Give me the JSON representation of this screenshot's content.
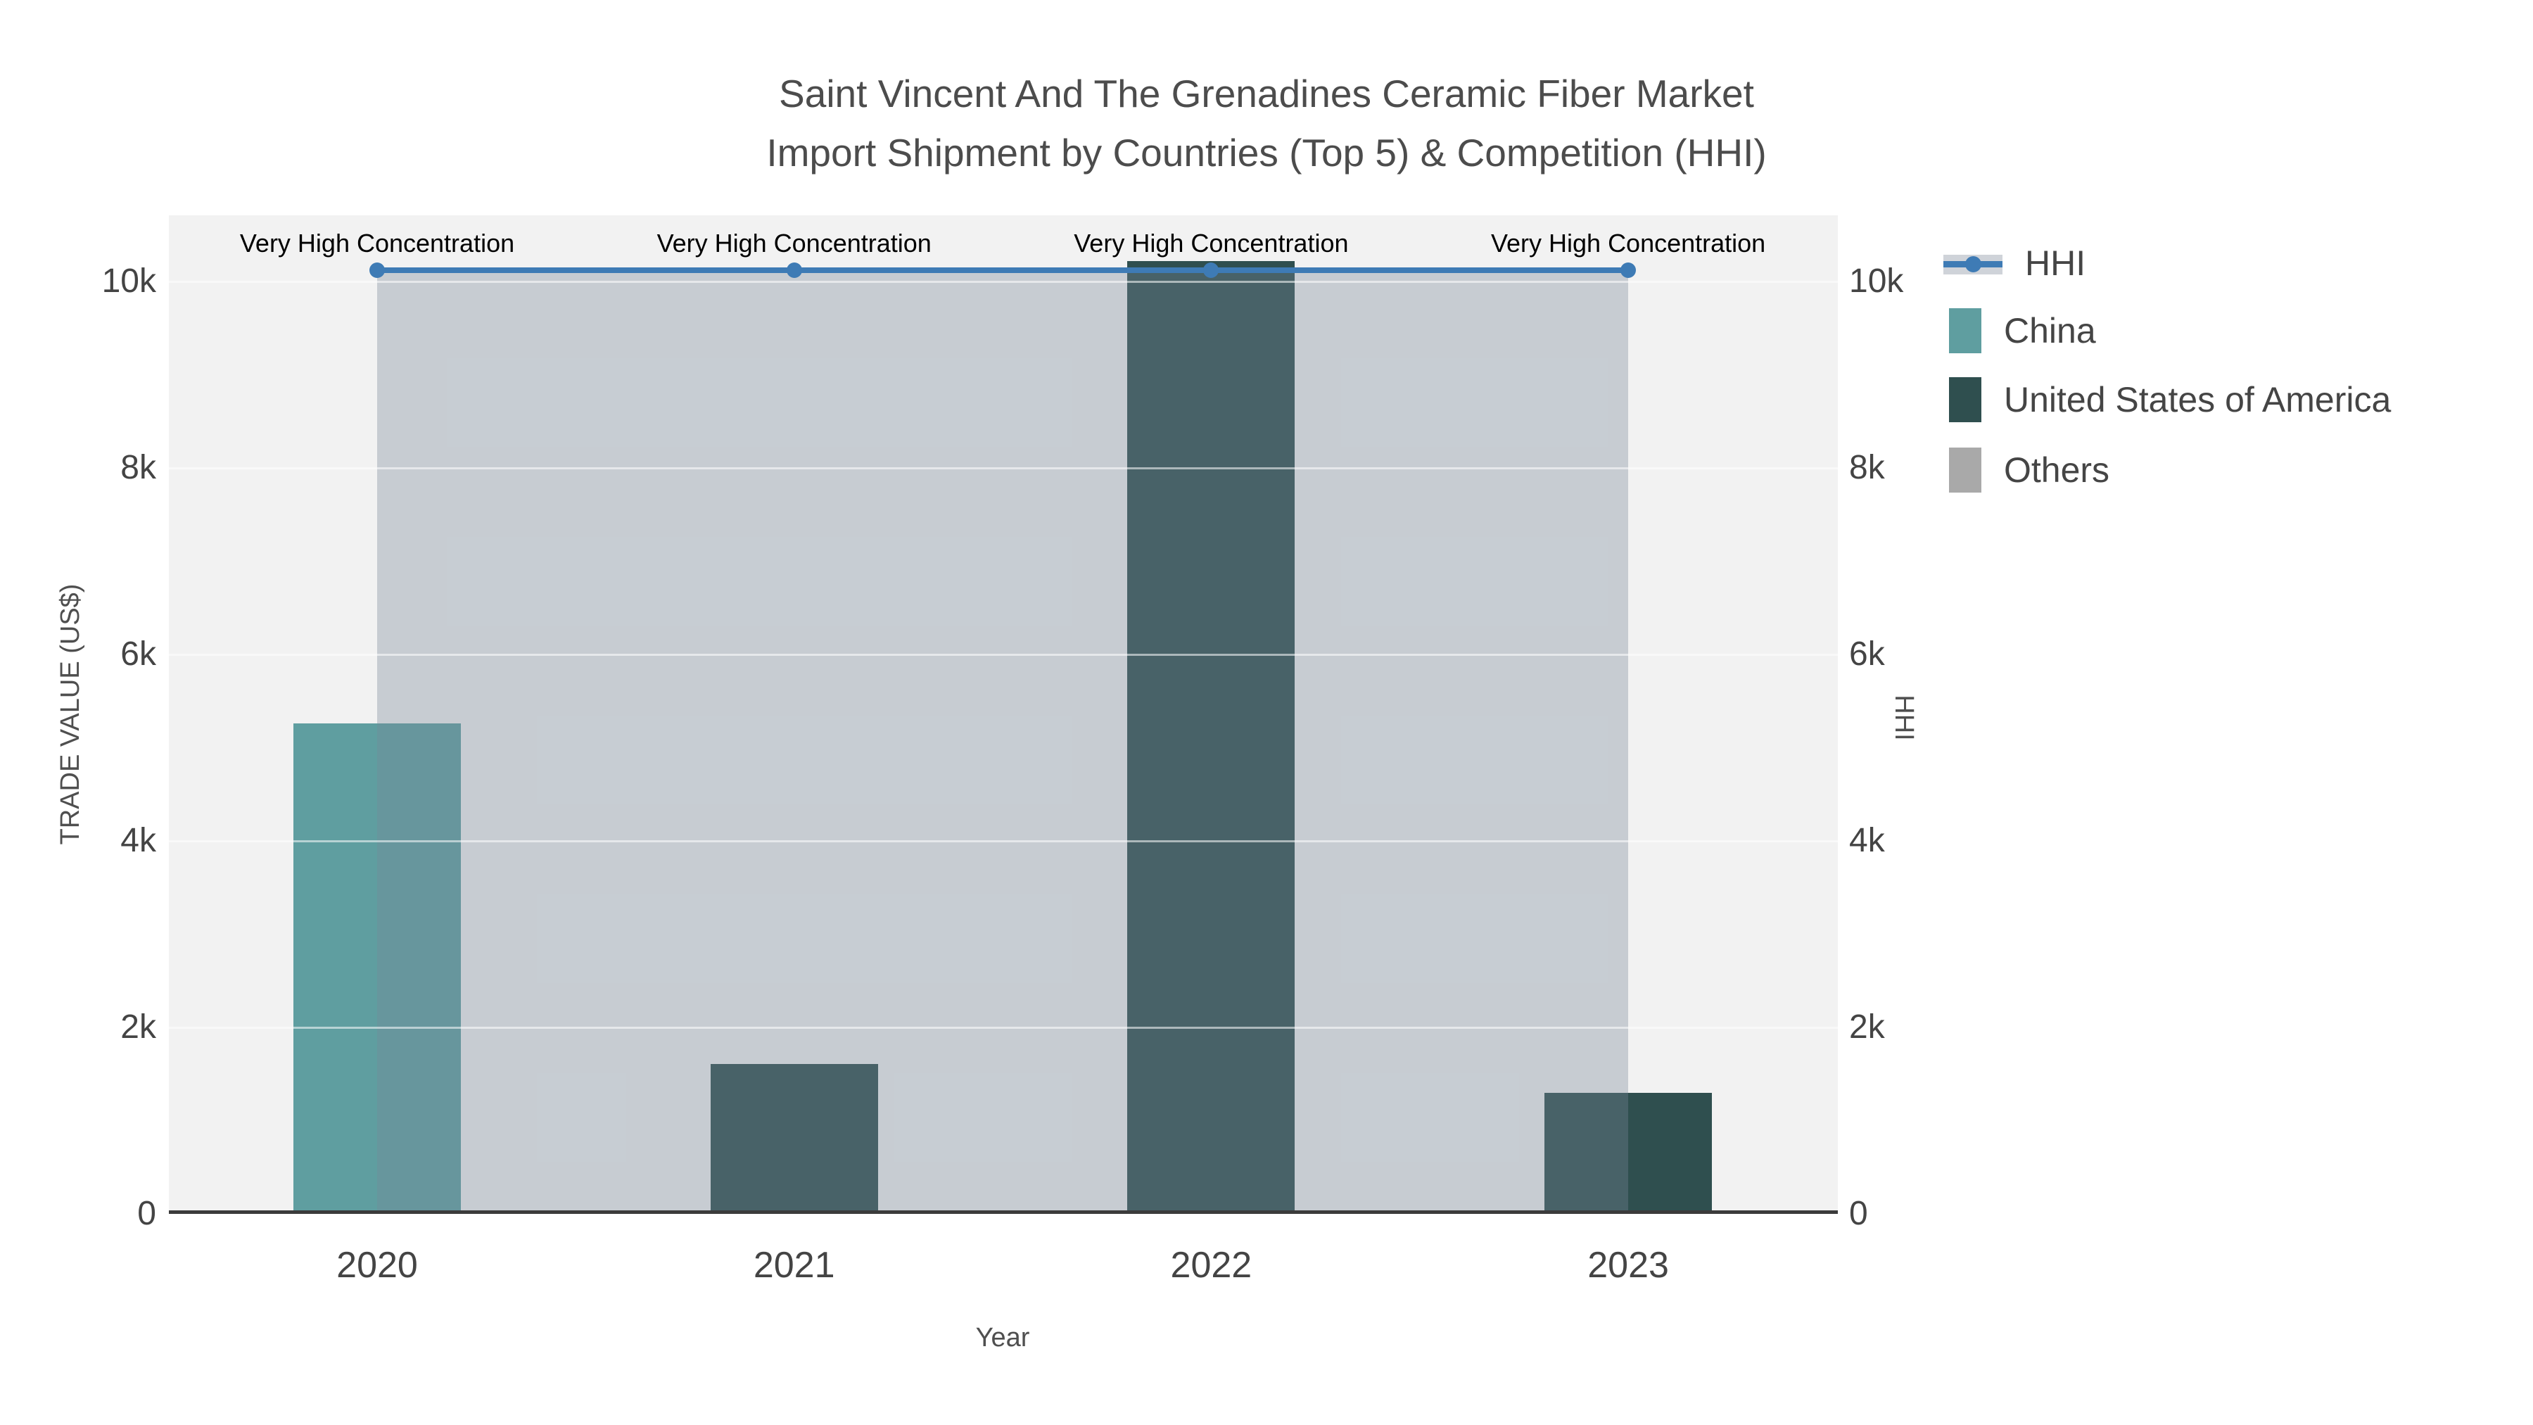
{
  "title": {
    "line1": "Saint Vincent And The Grenadines Ceramic Fiber Market",
    "line2": "Import Shipment by Countries (Top 5) & Competition (HHI)"
  },
  "axes": {
    "left_title": "TRADE VALUE (US$)",
    "right_title": "HHI",
    "x_title": "Year",
    "y_tick_labels": [
      "0",
      "2k",
      "4k",
      "6k",
      "8k",
      "10k"
    ],
    "y_tick_values": [
      0,
      2000,
      4000,
      6000,
      8000,
      10000
    ],
    "x_tick_labels": [
      "2020",
      "2021",
      "2022",
      "2023"
    ]
  },
  "legend": {
    "items": [
      {
        "label": "HHI",
        "type": "line",
        "color": "#3E7BB5"
      },
      {
        "label": "China",
        "type": "bar",
        "color": "#5F9EA0"
      },
      {
        "label": "United States of America",
        "type": "bar",
        "color": "#2F4F4F"
      },
      {
        "label": "Others",
        "type": "bar",
        "color": "#A9A9A9"
      }
    ]
  },
  "colors": {
    "plot_background": "#f2f2f2",
    "page_background": "#ffffff",
    "axis_line": "#3b3b3b",
    "gridline": "rgba(255,255,255,0.55)",
    "hhi_line": "#3E7BB5",
    "hhi_fill": "rgba(119,136,153,0.35)",
    "china_bar": "#5F9EA0",
    "usa_bar": "#2F4F4F",
    "others_bar": "#A9A9A9",
    "annotation_text": "#000000",
    "tick_text": "#444444",
    "title_text": "#4c4c4c"
  },
  "chart_data": {
    "type": "bar+line",
    "title": "Saint Vincent And The Grenadines Ceramic Fiber Market Import Shipment by Countries (Top 5) & Competition (HHI)",
    "categories": [
      "2020",
      "2021",
      "2022",
      "2023"
    ],
    "bar_series": [
      {
        "name": "China",
        "color": "#5F9EA0",
        "values": [
          5260,
          0,
          0,
          0
        ]
      },
      {
        "name": "United States of America",
        "color": "#2F4F4F",
        "values": [
          0,
          1610,
          10220,
          1300
        ]
      },
      {
        "name": "Others",
        "color": "#A9A9A9",
        "values": [
          0,
          0,
          0,
          0
        ]
      }
    ],
    "line_series": {
      "name": "HHI",
      "color": "#3E7BB5",
      "values": [
        10000,
        10000,
        10000,
        10000
      ],
      "fill": "tozeroy",
      "fill_color": "rgba(119,136,153,0.35)",
      "axis": "right"
    },
    "annotations": [
      {
        "text": "Very High Concentration",
        "x": "2020"
      },
      {
        "text": "Very High Concentration",
        "x": "2021"
      },
      {
        "text": "Very High Concentration",
        "x": "2022"
      },
      {
        "text": "Very High Concentration",
        "x": "2023"
      }
    ],
    "xlabel": "Year",
    "ylabel": "TRADE VALUE (US$)",
    "y2label": "HHI",
    "ylim": [
      0,
      10700
    ],
    "y2lim": [
      0,
      10700
    ],
    "grid": true,
    "legend_position": "top-right"
  }
}
